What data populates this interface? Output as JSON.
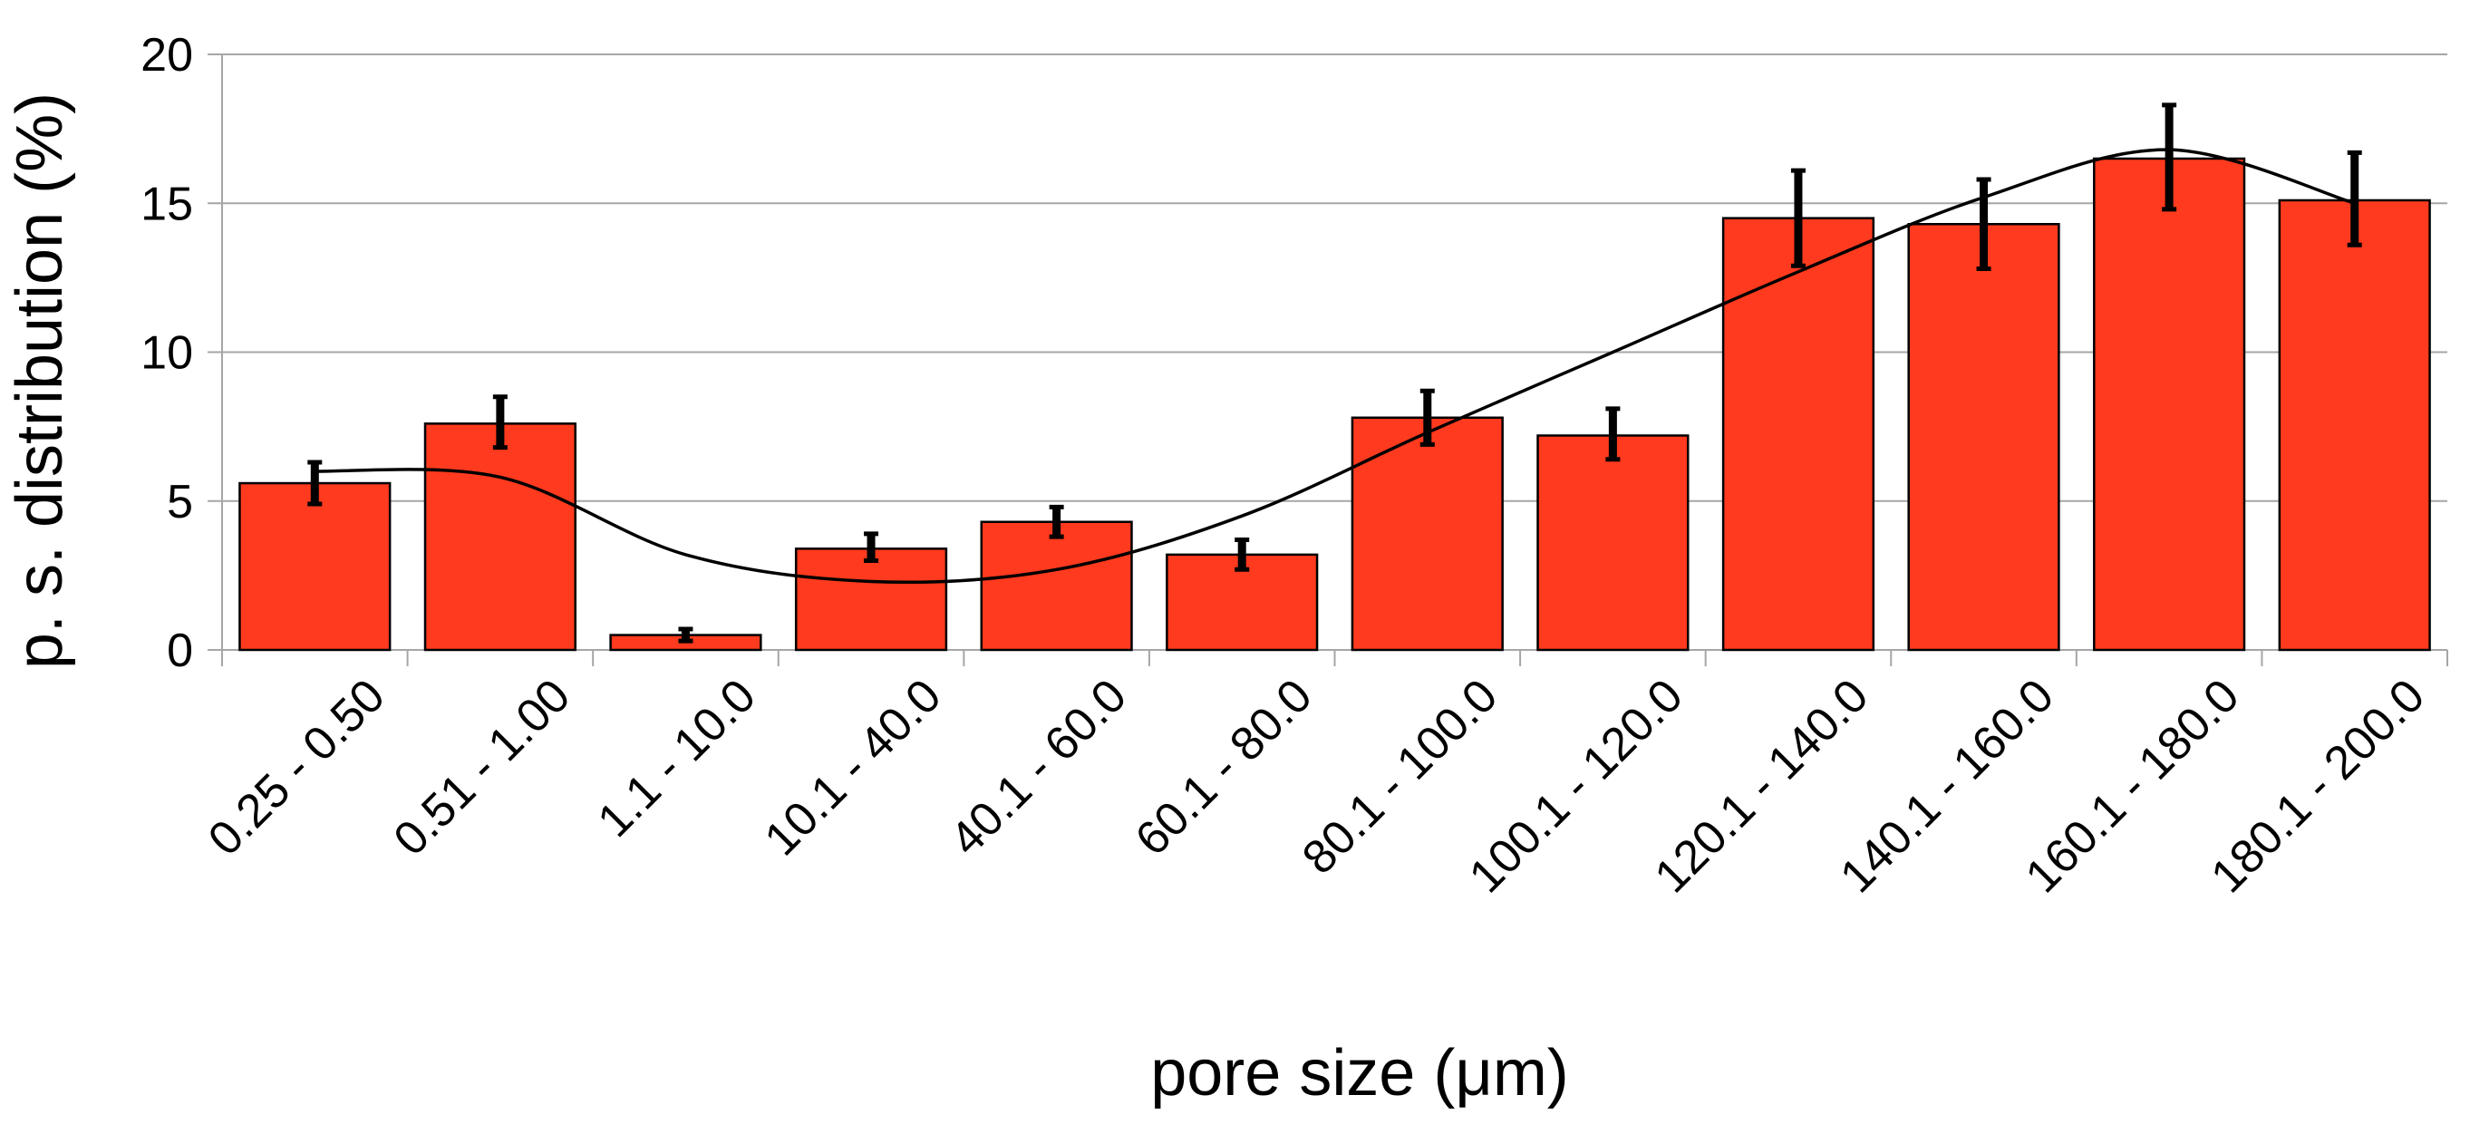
{
  "chart_data": {
    "type": "bar",
    "title": "",
    "xlabel": "pore size (μm)",
    "ylabel": "p. s. distribution (%)",
    "ylim": [
      0,
      20
    ],
    "yticks": [
      0,
      5,
      10,
      15,
      20
    ],
    "grid": true,
    "legend": "none",
    "colors": {
      "bar": "#ff3a1e",
      "bar_edge": "#000000",
      "error_bar": "#000000",
      "trend_line": "#000000",
      "grid": "#a6a6a6"
    },
    "categories": [
      "0.25 - 0.50",
      "0.51 - 1.00",
      "1.1 - 10.0",
      "10.1 - 40.0",
      "40.1 - 60.0",
      "60.1 - 80.0",
      "80.1 - 100.0",
      "100.1 - 120.0",
      "120.1 - 140.0",
      "140.1 - 160.0",
      "160.1 - 180.0",
      "180.1 - 200.0"
    ],
    "values": [
      5.6,
      7.6,
      0.5,
      3.4,
      4.3,
      3.2,
      7.8,
      7.2,
      14.5,
      14.3,
      16.5,
      15.1
    ],
    "error_low": [
      4.9,
      6.8,
      0.3,
      3.0,
      3.8,
      2.7,
      6.9,
      6.4,
      12.9,
      12.8,
      14.8,
      13.6
    ],
    "error_high": [
      6.3,
      8.5,
      0.7,
      3.9,
      4.8,
      3.7,
      8.7,
      8.1,
      16.1,
      15.8,
      18.3,
      16.7
    ],
    "trend_line": [
      6.0,
      5.8,
      3.2,
      2.3,
      2.7,
      4.5,
      7.3,
      10.0,
      12.7,
      15.2,
      16.8,
      15.0
    ]
  }
}
